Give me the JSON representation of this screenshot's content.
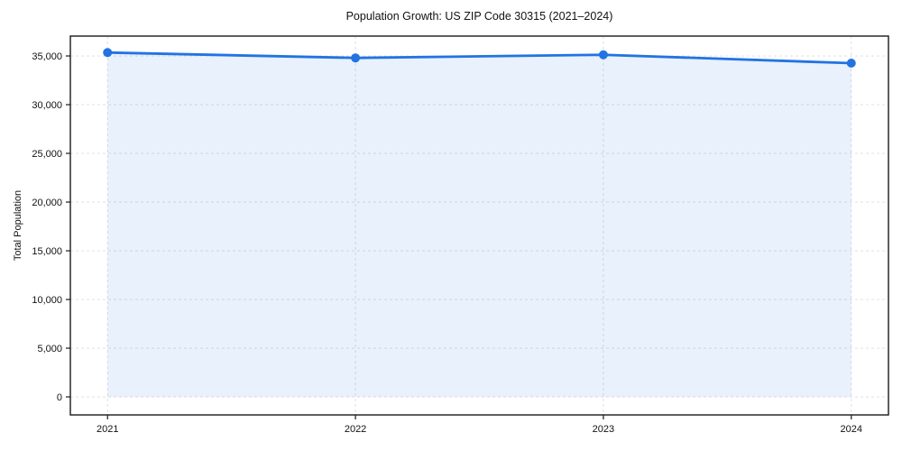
{
  "title": "Population Growth: US ZIP Code 30315 (2021–2024)",
  "colors": {
    "line": "#2273e3",
    "marker": "#2273e3",
    "fill": "rgba(34,115,227,0.10)",
    "grid": "#dcdcdc",
    "axis": "#1a1a1a",
    "text": "#111111",
    "background": "#ffffff"
  },
  "chart_data": {
    "type": "area",
    "title": "Population Growth: US ZIP Code 30315 (2021–2024)",
    "xlabel": "",
    "ylabel": "Total Population",
    "x": [
      2021,
      2022,
      2023,
      2024
    ],
    "x_tick_labels": [
      "2021",
      "2022",
      "2023",
      "2024"
    ],
    "series": [
      {
        "name": "Total Population",
        "values": [
          35350,
          34800,
          35120,
          34260
        ]
      }
    ],
    "y_tick_values": [
      0,
      5000,
      10000,
      15000,
      20000,
      25000,
      30000,
      35000
    ],
    "y_tick_labels": [
      "0",
      "5,000",
      "10,000",
      "15,000",
      "20,000",
      "25,000",
      "30,000",
      "35,000"
    ],
    "ylim": [
      -1850,
      37040
    ],
    "xlim": [
      2020.85,
      2024.15
    ],
    "grid": true,
    "grid_style": "dashed",
    "legend_position": "none",
    "marker": "circle",
    "fill_to_zero": true
  }
}
